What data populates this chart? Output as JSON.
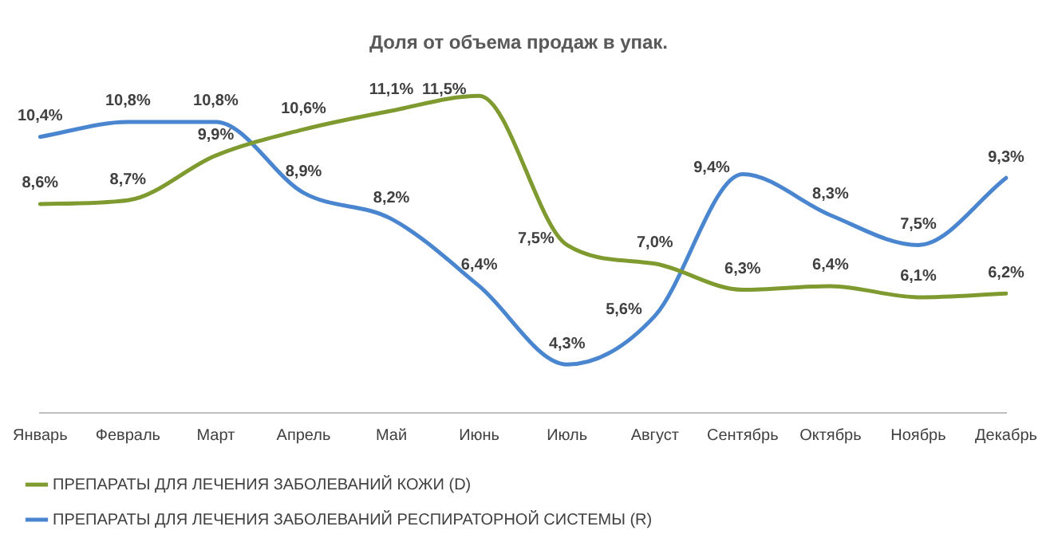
{
  "chart_data": {
    "type": "line",
    "title": "Доля от объема продаж в упак.",
    "categories": [
      "Январь",
      "Февраль",
      "Март",
      "Апрель",
      "Май",
      "Июнь",
      "Июль",
      "Август",
      "Сентябрь",
      "Октябрь",
      "Ноябрь",
      "Декабрь"
    ],
    "series": [
      {
        "name": "ПРЕПАРАТЫ ДЛЯ ЛЕЧЕНИЯ ЗАБОЛЕВАНИЙ КОЖИ (D)",
        "color": "#7f9a2f",
        "values": [
          8.6,
          8.7,
          9.9,
          10.6,
          11.1,
          11.5,
          7.5,
          7.0,
          6.3,
          6.4,
          6.1,
          6.2
        ],
        "value_labels": [
          "8,6%",
          "8,7%",
          "9,9%",
          "10,6%",
          "11,1%",
          "11,5%",
          "7,5%",
          "7,0%",
          "6,3%",
          "6,4%",
          "6,1%",
          "6,2%"
        ]
      },
      {
        "name": "ПРЕПАРАТЫ ДЛЯ ЛЕЧЕНИЯ ЗАБОЛЕВАНИЙ РЕСПИРАТОРНОЙ СИСТЕМЫ (R)",
        "color": "#4a86d0",
        "values": [
          10.4,
          10.8,
          10.8,
          8.9,
          8.2,
          6.4,
          4.3,
          5.6,
          9.4,
          8.3,
          7.5,
          9.3
        ],
        "value_labels": [
          "10,4%",
          "10,8%",
          "10,8%",
          "8,9%",
          "8,2%",
          "6,4%",
          "4,3%",
          "5,6%",
          "9,4%",
          "8,3%",
          "7,5%",
          "9,3%"
        ]
      }
    ],
    "tick_labels": "x",
    "grid": false,
    "legend": "bottom",
    "marker": "none",
    "line_style": "solid"
  }
}
